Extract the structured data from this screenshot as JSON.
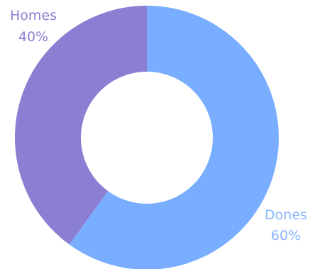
{
  "chart_data": {
    "type": "pie",
    "variant": "donut",
    "start_angle_deg": 0,
    "direction": "clockwise",
    "slices": [
      {
        "label": "Dones",
        "value": 60,
        "value_label": "60%",
        "color": "#78adff",
        "label_color": "#8ab4fc"
      },
      {
        "label": "Homes",
        "value": 40,
        "value_label": "40%",
        "color": "#8b7fd3",
        "label_color": "#8b7fd3"
      }
    ],
    "legend": "none"
  }
}
